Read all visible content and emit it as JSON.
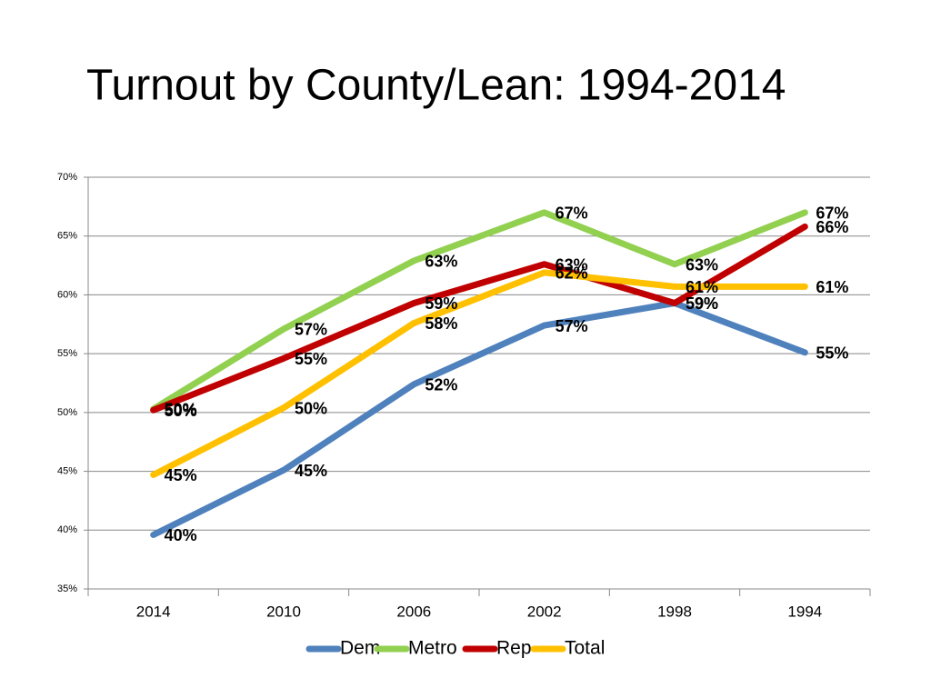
{
  "chart_data": {
    "type": "line",
    "title": "Turnout by County/Lean: 1994-2014",
    "categories": [
      "2014",
      "2010",
      "2006",
      "2002",
      "1998",
      "1994"
    ],
    "series": [
      {
        "name": "Dem",
        "color": "#4f81bd",
        "values": [
          39.6,
          45.1,
          52.4,
          57.4,
          59.3,
          55.1
        ],
        "value_labels": [
          "40%",
          "45%",
          "52%",
          "57%",
          "59%",
          "55%"
        ]
      },
      {
        "name": "Metro",
        "color": "#92d050",
        "values": [
          50.3,
          57.1,
          62.9,
          67.0,
          62.6,
          67.0
        ],
        "value_labels": [
          "50%",
          "57%",
          "63%",
          "67%",
          "63%",
          "67%"
        ]
      },
      {
        "name": "Rep",
        "color": "#c00000",
        "values": [
          50.2,
          54.6,
          59.3,
          62.6,
          59.3,
          65.8
        ],
        "value_labels": [
          "50%",
          "55%",
          "59%",
          "63%",
          "59%",
          "66%"
        ]
      },
      {
        "name": "Total",
        "color": "#ffc000",
        "values": [
          44.7,
          50.4,
          57.6,
          61.9,
          60.7,
          60.7
        ],
        "value_labels": [
          "45%",
          "50%",
          "58%",
          "62%",
          "61%",
          "61%"
        ]
      }
    ],
    "ylim": [
      35,
      70
    ],
    "yticks": [
      {
        "value": 35,
        "label": "35%"
      },
      {
        "value": 40,
        "label": "40%"
      },
      {
        "value": 45,
        "label": "45%"
      },
      {
        "value": 50,
        "label": "50%"
      },
      {
        "value": 55,
        "label": "55%"
      },
      {
        "value": 60,
        "label": "60%"
      },
      {
        "value": 65,
        "label": "65%"
      },
      {
        "value": 70,
        "label": "70%"
      }
    ],
    "grid": true,
    "legend": "bottom"
  }
}
